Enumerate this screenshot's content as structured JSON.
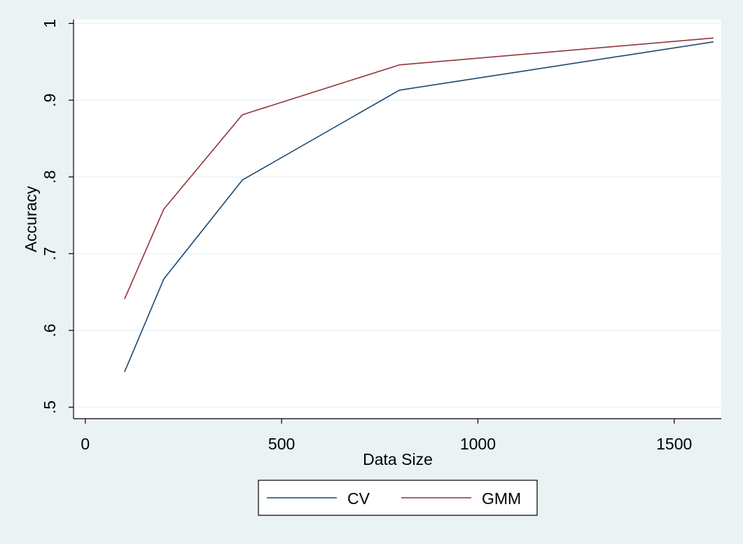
{
  "chart_data": {
    "type": "line",
    "title": "",
    "xlabel": "Data Size",
    "ylabel": "Accuracy",
    "x": [
      100,
      200,
      400,
      800,
      1600
    ],
    "series": [
      {
        "name": "CV",
        "color": "#1a476f",
        "values": [
          0.546,
          0.667,
          0.796,
          0.913,
          0.976
        ]
      },
      {
        "name": "GMM",
        "color": "#90353b",
        "values": [
          0.641,
          0.758,
          0.881,
          0.946,
          0.981
        ]
      }
    ],
    "xlim": [
      -30,
      1620
    ],
    "ylim": [
      0.485,
      1.005
    ],
    "xticks": [
      0,
      500,
      1000,
      1500
    ],
    "xtick_labels": [
      "0",
      "500",
      "1000",
      "1500"
    ],
    "yticks": [
      0.5,
      0.6,
      0.7,
      0.8,
      0.9,
      1.0
    ],
    "ytick_labels": [
      ".5",
      ".6",
      ".7",
      ".8",
      ".9",
      "1"
    ],
    "grid": true,
    "legend": "bottom"
  }
}
